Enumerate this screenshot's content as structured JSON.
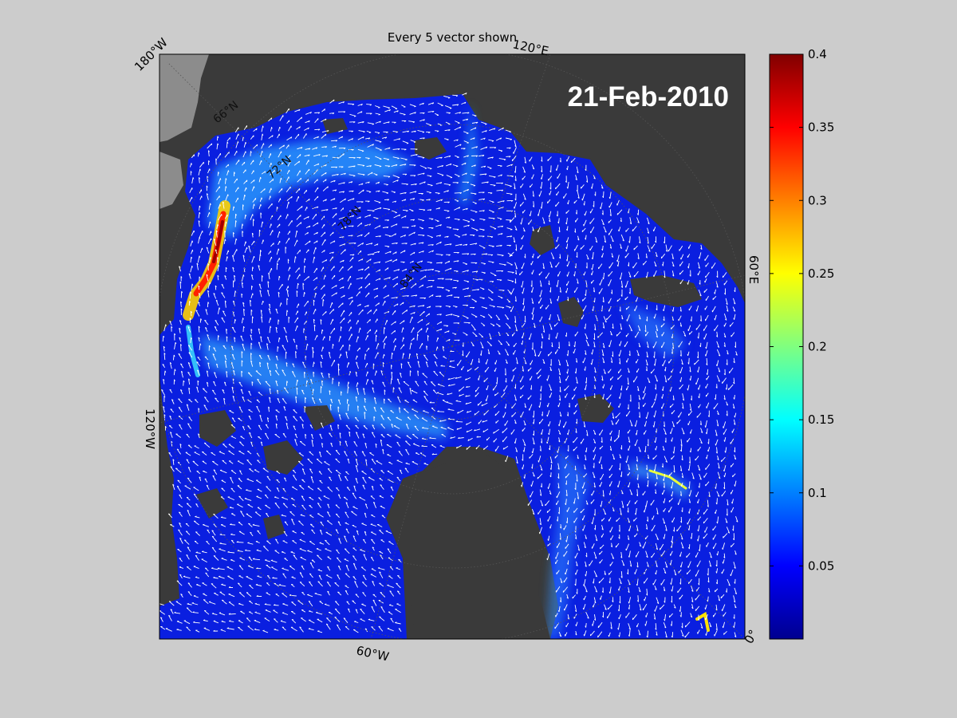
{
  "map": {
    "title": "Every 5 vector shown",
    "date_label": "21-Feb-2010",
    "edge_labels": {
      "top_left": "180°W",
      "top_right": "120°E",
      "left": "120°W",
      "right": "60°E",
      "bottom": "60°W",
      "bottom_right": "0°"
    },
    "parallel_labels": [
      "66°N",
      "72°N",
      "78°N",
      "84°N"
    ]
  },
  "colorbar": {
    "ticks": [
      "0.4",
      "0.35",
      "0.3",
      "0.25",
      "0.2",
      "0.15",
      "0.1",
      "0.05"
    ],
    "tick_values": [
      0.4,
      0.35,
      0.3,
      0.25,
      0.2,
      0.15,
      0.1,
      0.05
    ],
    "range": [
      0,
      0.4
    ],
    "colormap": "jet"
  },
  "colors": {
    "figure_background": "#cccccc",
    "land": "#3a3a3a",
    "land_light": "#8c8c8c",
    "ocean_low": "#0a1fe0",
    "vectors": "#ffffff",
    "date_text": "#ffffff"
  }
}
